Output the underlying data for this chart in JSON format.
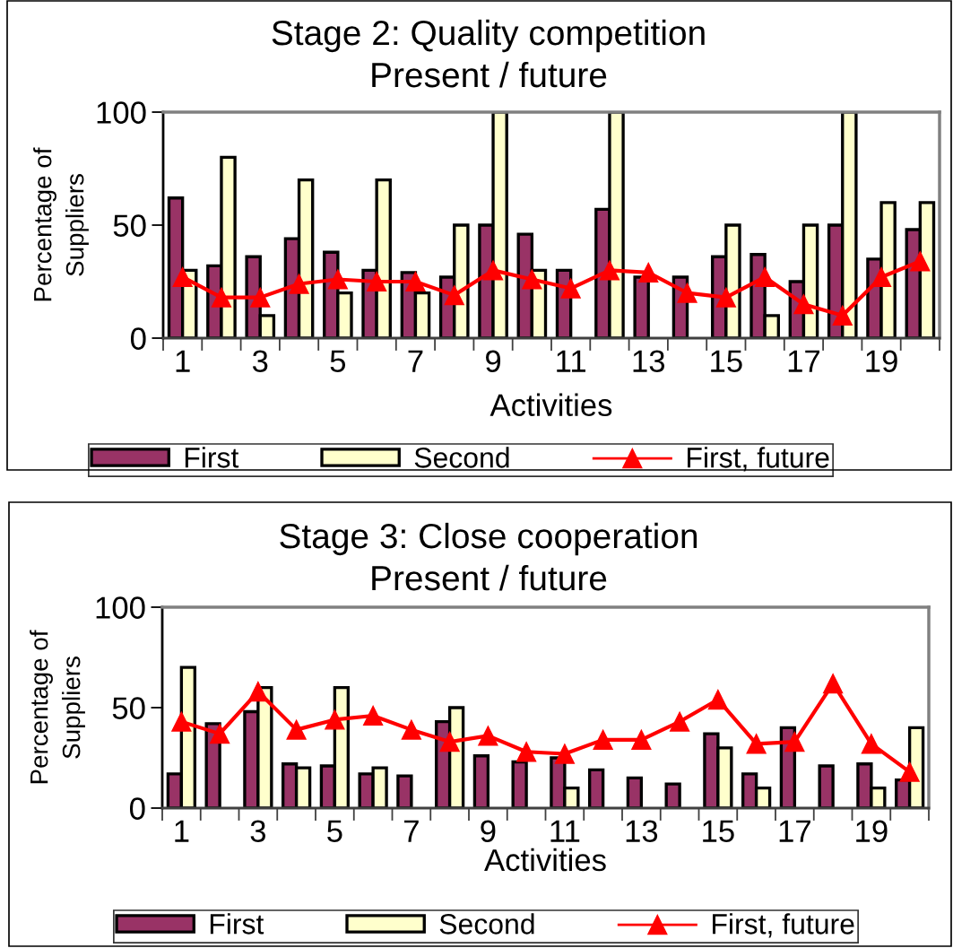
{
  "chart_data": [
    {
      "type": "bar",
      "title": "Stage 2: Quality competition",
      "subtitle": "Present / future",
      "xlabel": "Activities",
      "ylabel": "Percentage of\nSuppliers",
      "categories": [
        "1",
        null,
        "3",
        null,
        "5",
        null,
        "7",
        null,
        "9",
        null,
        "11",
        null,
        "13",
        null,
        "15",
        null,
        "17",
        null,
        "19",
        null
      ],
      "series": [
        {
          "name": "First",
          "color": "#993366",
          "values": [
            62,
            32,
            36,
            44,
            38,
            30,
            29,
            27,
            50,
            46,
            30,
            57,
            27,
            27,
            36,
            37,
            25,
            50,
            35,
            48
          ]
        },
        {
          "name": "Second",
          "color": "#ffffcc",
          "values": [
            30,
            80,
            10,
            70,
            20,
            70,
            20,
            50,
            100,
            30,
            null,
            100,
            null,
            null,
            50,
            10,
            50,
            100,
            60,
            60
          ]
        },
        {
          "name": "First, future",
          "type": "line",
          "color": "#ff0000",
          "values": [
            27,
            18,
            18,
            24,
            26,
            25,
            25,
            19,
            30,
            26,
            22,
            30,
            29,
            20,
            18,
            27,
            15,
            10,
            27,
            34
          ]
        }
      ],
      "ylim": [
        0,
        100
      ],
      "yticks": [
        0,
        50,
        100
      ],
      "legend": "bottom",
      "marker": "triangle",
      "line_style": "solid"
    },
    {
      "type": "bar",
      "title": "Stage 3: Close cooperation",
      "subtitle": "Present / future",
      "xlabel": "Activities",
      "ylabel": "Percentage of\nSuppliers",
      "categories": [
        "1",
        null,
        "3",
        null,
        "5",
        null,
        "7",
        null,
        "9",
        null,
        "11",
        null,
        "13",
        null,
        "15",
        null,
        "17",
        null,
        "19",
        null
      ],
      "series": [
        {
          "name": "First",
          "color": "#993366",
          "values": [
            17,
            42,
            48,
            22,
            21,
            17,
            16,
            43,
            26,
            23,
            25,
            19,
            15,
            12,
            37,
            17,
            40,
            21,
            22,
            14
          ]
        },
        {
          "name": "Second",
          "color": "#ffffcc",
          "values": [
            70,
            null,
            60,
            20,
            60,
            20,
            null,
            50,
            null,
            null,
            10,
            null,
            null,
            null,
            30,
            10,
            null,
            null,
            10,
            40
          ]
        },
        {
          "name": "First, future",
          "type": "line",
          "color": "#ff0000",
          "values": [
            43,
            37,
            58,
            39,
            44,
            46,
            39,
            33,
            36,
            28,
            27,
            34,
            34,
            43,
            54,
            32,
            33,
            62,
            32,
            18
          ]
        }
      ],
      "ylim": [
        0,
        100
      ],
      "yticks": [
        0,
        50,
        100
      ],
      "legend": "bottom",
      "marker": "triangle",
      "line_style": "solid"
    }
  ]
}
